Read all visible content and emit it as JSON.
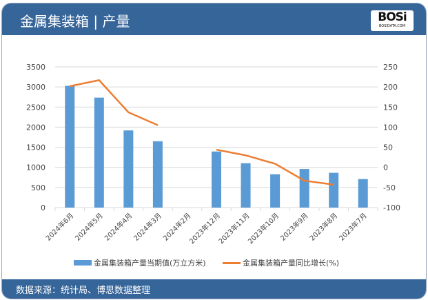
{
  "header": {
    "title": "金属集装箱 | 产量",
    "logo_text": "BOSi",
    "logo_sub": "BOSIDATA.COM"
  },
  "footer": {
    "source": "数据来源：统计局、博思数据整理"
  },
  "colors": {
    "header": "#36659a",
    "bar": "#5b9bd5",
    "line": "#ed7d31"
  },
  "chart_data": {
    "type": "bar+line",
    "categories": [
      "2024年6月",
      "2024年5月",
      "2024年4月",
      "2024年3月",
      "2024年2月",
      "2023年12月",
      "2023年11月",
      "2023年10月",
      "2023年9月",
      "2023年8月",
      "2023年7月"
    ],
    "series": [
      {
        "name": "金属集装箱产量当期值(万立方米)",
        "type": "bar",
        "axis": "left",
        "values": [
          3030,
          2735,
          1920,
          1650,
          null,
          1395,
          1105,
          830,
          960,
          865,
          710
        ]
      },
      {
        "name": "金属集装箱产量同比增长(%)",
        "type": "line",
        "axis": "right",
        "values": [
          202,
          217,
          137,
          105,
          null,
          44,
          30,
          9,
          -33,
          -43,
          null
        ]
      }
    ],
    "ylim_left": [
      0,
      3500
    ],
    "yticks_left": [
      0,
      500,
      1000,
      1500,
      2000,
      2500,
      3000,
      3500
    ],
    "ylim_right": [
      -100,
      250
    ],
    "yticks_right": [
      -100,
      -50,
      0,
      50,
      100,
      150,
      200,
      250
    ],
    "grid": true,
    "legend": "bottom"
  }
}
